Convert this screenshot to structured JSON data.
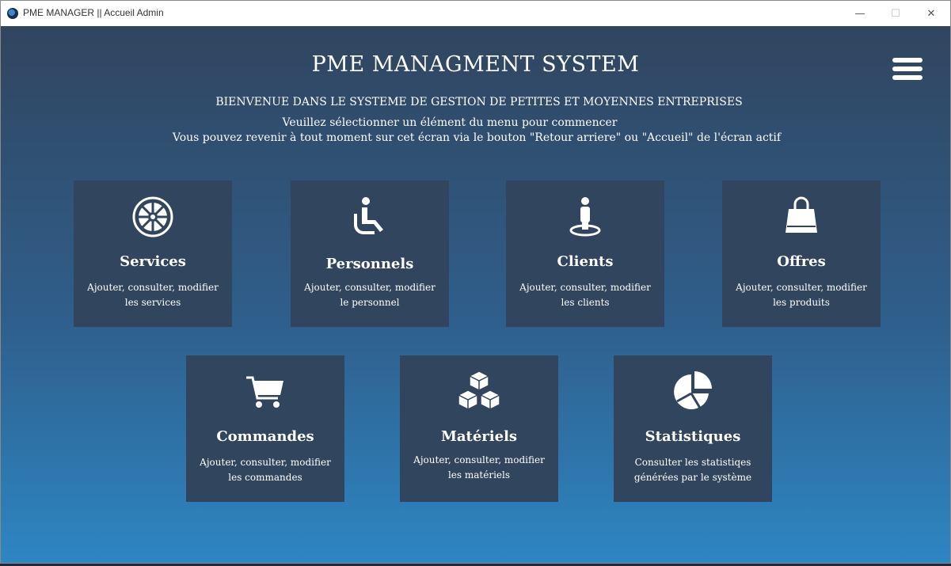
{
  "window": {
    "title": "PME MANAGER || Accueil Admin",
    "controls": {
      "minimize": "—",
      "maximize": "☐",
      "close": "✕"
    }
  },
  "header": {
    "title": "PME MANAGMENT SYSTEM",
    "subtitle": "BIENVENUE DANS LE SYSTEME DE GESTION DE PETITES ET MOYENNES ENTREPRISES",
    "instruction_1": "Veuillez sélectionner un élément du menu pour commencer",
    "instruction_2": "Vous pouvez revenir à tout moment sur cet écran via le bouton \"Retour arriere\" ou \"Accueil\" de l'écran actif",
    "menu_icon": "hamburger-menu-icon"
  },
  "tiles": [
    {
      "name": "Services",
      "icon": "emblem-icon",
      "desc_1": "Ajouter, consulter, modifier",
      "desc_2": "les services"
    },
    {
      "name": "Personnels",
      "icon": "seated-person-icon",
      "desc_1": "Ajouter, consulter, modifier",
      "desc_2": "le personnel"
    },
    {
      "name": "Clients",
      "icon": "user-on-spot-icon",
      "desc_1": "Ajouter, consulter, modifier",
      "desc_2": "les clients"
    },
    {
      "name": "Offres",
      "icon": "shopping-bag-icon",
      "desc_1": "Ajouter, consulter, modifier",
      "desc_2": "les produits"
    },
    {
      "name": "Commandes",
      "icon": "shopping-cart-icon",
      "desc_1": "Ajouter, consulter, modifier",
      "desc_2": "les commandes"
    },
    {
      "name": "Matériels",
      "icon": "cubes-icon",
      "desc_1": "Ajouter, consulter, modifier",
      "desc_2": "les matériels"
    },
    {
      "name": "Statistiques",
      "icon": "pie-chart-icon",
      "desc_1": "Consulter les statistiqes",
      "desc_2": "générées par le système"
    }
  ],
  "colors": {
    "tile_background": "#32455e",
    "gradient_top": "#31455f",
    "gradient_bottom": "#2e86c3",
    "text": "#ffffff"
  }
}
